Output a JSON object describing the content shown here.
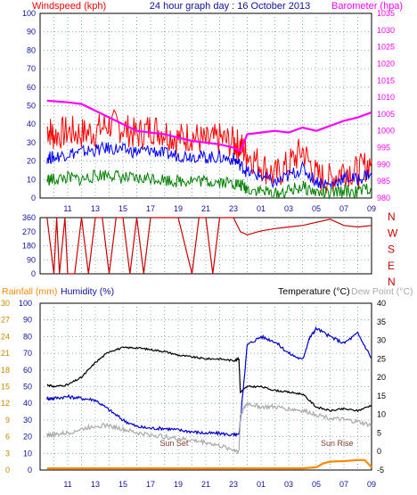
{
  "chart_data": [
    {
      "type": "line",
      "title": "24 hour graph day : 16 October 2013",
      "left_axis_label": "Windspeed (kph)",
      "right_axis_label": "Barometer (hpa)",
      "ylim_left": [
        0,
        100
      ],
      "ylim_right": [
        980,
        1035
      ],
      "left_ticks": [
        0,
        10,
        20,
        30,
        40,
        50,
        60,
        70,
        80,
        90,
        100
      ],
      "right_ticks": [
        980,
        985,
        990,
        995,
        1000,
        1005,
        1010,
        1015,
        1020,
        1025,
        1030,
        1035
      ],
      "x_ticks": [
        "11",
        "13",
        "15",
        "17",
        "19",
        "21",
        "23",
        "01",
        "03",
        "05",
        "07",
        "09"
      ],
      "xlim_hours": [
        9,
        33
      ],
      "grid": true,
      "series": [
        {
          "name": "Windspeed (kph)",
          "color": "#ff0000",
          "axis": "left",
          "x": [
            9.5,
            10,
            11,
            12,
            13,
            14,
            15,
            16,
            17,
            18,
            19,
            20,
            21,
            22,
            23,
            23.5,
            24,
            25,
            26,
            27,
            28,
            29,
            30,
            31,
            32,
            33
          ],
          "y": [
            38,
            34,
            36,
            35,
            36,
            40,
            38,
            34,
            38,
            36,
            32,
            34,
            30,
            32,
            30,
            28,
            24,
            18,
            12,
            18,
            26,
            12,
            10,
            16,
            14,
            20
          ]
        },
        {
          "color": "#0000ff",
          "axis": "left",
          "x": [
            9.5,
            10,
            11,
            12,
            13,
            14,
            15,
            16,
            17,
            18,
            19,
            20,
            21,
            22,
            23,
            23.5,
            24,
            25,
            26,
            27,
            28,
            29,
            30,
            31,
            32,
            33
          ],
          "y": [
            22,
            22,
            24,
            25,
            26,
            27,
            26,
            25,
            26,
            24,
            23,
            23,
            22,
            22,
            21,
            18,
            14,
            12,
            8,
            12,
            16,
            9,
            7,
            11,
            10,
            14
          ]
        },
        {
          "color": "#008000",
          "axis": "left",
          "x": [
            9.5,
            10,
            11,
            12,
            13,
            14,
            15,
            16,
            17,
            18,
            19,
            20,
            21,
            22,
            23,
            23.5,
            24,
            25,
            26,
            27,
            28,
            29,
            30,
            31,
            32,
            33
          ],
          "y": [
            10,
            10,
            11,
            10,
            12,
            13,
            11,
            10,
            11,
            10,
            9,
            10,
            9,
            9,
            8,
            7,
            5,
            4,
            2,
            4,
            6,
            3,
            2,
            4,
            3,
            6
          ]
        },
        {
          "name": "Barometer (hpa)",
          "color": "#ff00ff",
          "axis": "right",
          "x": [
            9.5,
            11,
            12,
            13,
            14,
            15,
            16,
            17,
            18,
            19,
            20,
            21,
            22,
            23,
            23.5,
            24,
            25,
            26,
            27,
            28,
            29,
            30,
            31,
            32,
            33
          ],
          "y": [
            1009,
            1008.5,
            1008,
            1006,
            1004,
            1002,
            1000,
            999.5,
            999,
            998,
            997,
            996.5,
            996,
            995,
            994,
            999,
            999.5,
            1000,
            999.5,
            1001,
            1000,
            1001.5,
            1003,
            1004,
            1005.5
          ]
        }
      ]
    },
    {
      "type": "line",
      "right_labels": [
        "N",
        "W",
        "S",
        "E",
        "N"
      ],
      "left_ticks": [
        0,
        90,
        180,
        270,
        360
      ],
      "ylim": [
        0,
        360
      ],
      "x_ticks": [
        "11",
        "13",
        "15",
        "17",
        "19",
        "21",
        "23",
        "01",
        "03",
        "05",
        "07",
        "09"
      ],
      "xlim_hours": [
        9,
        33
      ],
      "grid": true,
      "series": [
        {
          "name": "Wind direction",
          "color": "#cc0000",
          "x": [
            9.5,
            10,
            10.2,
            10.4,
            10.8,
            11,
            11.5,
            12,
            12.5,
            13,
            13.5,
            14,
            14.5,
            15,
            15.5,
            16,
            16.5,
            17,
            17.5,
            18,
            19,
            20,
            20.5,
            21,
            21.5,
            22,
            23,
            23.5,
            24,
            25,
            26,
            27,
            28,
            29,
            30,
            31,
            32,
            33
          ],
          "y": [
            360,
            0,
            360,
            0,
            360,
            0,
            0,
            360,
            0,
            360,
            360,
            0,
            360,
            360,
            0,
            360,
            0,
            360,
            360,
            360,
            360,
            0,
            360,
            360,
            0,
            360,
            360,
            270,
            250,
            275,
            290,
            300,
            310,
            330,
            350,
            310,
            300,
            310
          ]
        }
      ]
    },
    {
      "type": "line",
      "left_axis_label": "Rainfall (mm)",
      "left_axis2_label": "Humidity (%)",
      "right_axis_label": "Temperature (°C)",
      "right_axis2_label": "Dew Point (°C)",
      "humidity_ticks": [
        0,
        10,
        20,
        30,
        40,
        50,
        60,
        70,
        80,
        90,
        100
      ],
      "ylim_humidity": [
        0,
        100
      ],
      "rain_ticks": [
        0,
        3,
        6,
        9,
        12,
        15,
        18,
        21,
        24,
        27,
        30
      ],
      "ylim_rain": [
        0,
        30
      ],
      "temp_ticks": [
        -5,
        0,
        5,
        10,
        15,
        20,
        25,
        30,
        35,
        40
      ],
      "ylim_temp": [
        -5,
        40
      ],
      "x_ticks": [
        "11",
        "13",
        "15",
        "17",
        "19",
        "21",
        "23",
        "01",
        "03",
        "05",
        "07",
        "09"
      ],
      "xlim_hours": [
        9,
        33
      ],
      "annotations": [
        {
          "text": "Sun Set",
          "x": 18.7
        },
        {
          "text": "Sun Rise",
          "x": 30.5
        }
      ],
      "grid": true,
      "series": [
        {
          "name": "Temperature (°C)",
          "color": "#000000",
          "axis": "temp",
          "x": [
            9.5,
            10,
            11,
            12,
            13,
            14,
            15,
            16,
            17,
            18,
            19,
            20,
            21,
            22,
            23,
            23.4,
            23.5,
            24,
            25,
            26,
            27,
            28,
            29,
            30,
            31,
            32,
            33
          ],
          "y": [
            18,
            17.5,
            18,
            20,
            24,
            27,
            28,
            28,
            27.5,
            27,
            26,
            25.5,
            25,
            25,
            24.5,
            25,
            16,
            17.5,
            17.5,
            16.5,
            16,
            15.5,
            12,
            11,
            11.5,
            11,
            12.5
          ]
        },
        {
          "name": "Humidity (%)",
          "color": "#0000cc",
          "axis": "humidity",
          "x": [
            9.5,
            10,
            11,
            12,
            13,
            14,
            15,
            16,
            17,
            18,
            19,
            20,
            21,
            22,
            23,
            23.4,
            23.5,
            24,
            25,
            26,
            27,
            28,
            28.5,
            29,
            30,
            31,
            32,
            33
          ],
          "y": [
            43,
            43,
            44,
            43,
            42,
            36,
            30,
            26,
            25,
            25,
            24,
            23,
            22,
            22,
            21,
            21,
            30,
            75,
            80,
            77,
            70,
            66,
            79,
            85,
            80,
            76,
            82,
            67
          ]
        },
        {
          "name": "Dew Point (°C)",
          "color": "#aaaaaa",
          "axis": "temp",
          "x": [
            9.5,
            10,
            11,
            12,
            13,
            14,
            15,
            16,
            17,
            18,
            19,
            20,
            21,
            22,
            23,
            23.4,
            23.5,
            24,
            25,
            26,
            27,
            28,
            29,
            30,
            31,
            32,
            33
          ],
          "y": [
            4.5,
            4.5,
            5,
            6,
            7,
            7,
            6,
            5,
            4.5,
            4,
            3.5,
            3,
            2.5,
            1.5,
            0.5,
            0,
            10,
            13,
            12,
            12,
            11.5,
            11,
            10,
            9,
            8.5,
            8,
            7
          ]
        },
        {
          "name": "Rainfall (mm)",
          "color": "#ff8800",
          "axis": "rain",
          "x": [
            9.5,
            10,
            12,
            14,
            16,
            18,
            20,
            22,
            24,
            26,
            28,
            29,
            29.5,
            30,
            31,
            32,
            32.5,
            33
          ],
          "y": [
            0.3,
            0.3,
            0.3,
            0.3,
            0.3,
            0.3,
            0.3,
            0.3,
            0.3,
            0.3,
            0.3,
            0.5,
            1.2,
            1.5,
            1.6,
            1.8,
            1.8,
            0.5
          ]
        }
      ]
    }
  ]
}
